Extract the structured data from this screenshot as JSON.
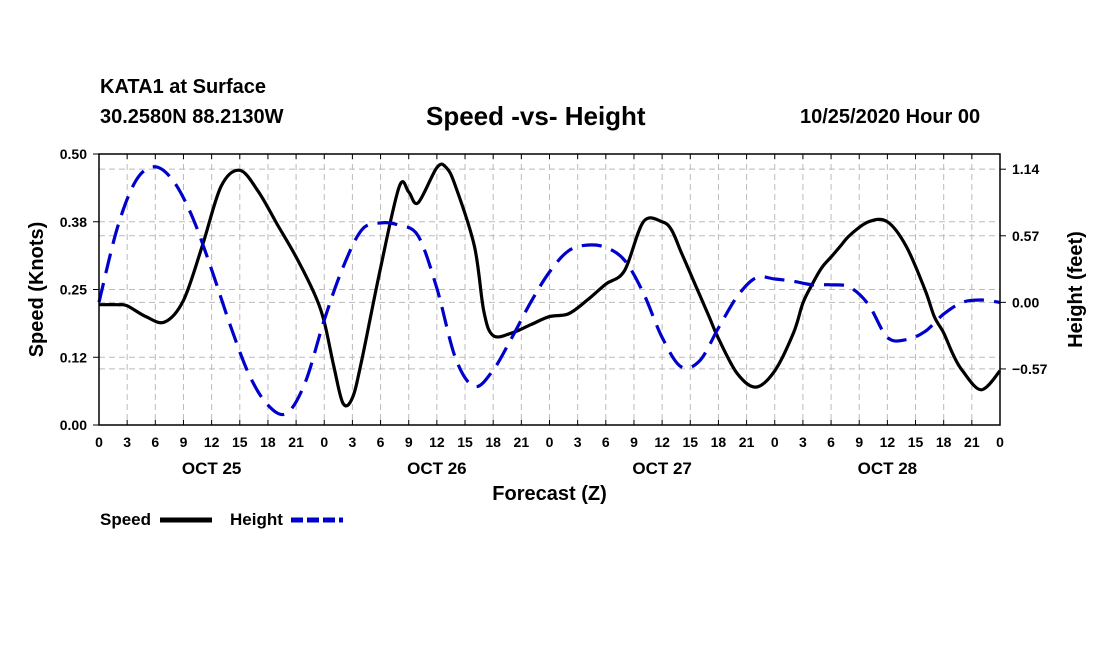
{
  "header": {
    "station": "KATA1 at Surface",
    "coords": "30.2580N 88.2130W",
    "title": "Speed -vs- Height",
    "datetime": "10/25/2020 Hour 00"
  },
  "legend": {
    "speed_label": "Speed",
    "height_label": "Height"
  },
  "colors": {
    "speed": "#000000",
    "height": "#0000cc",
    "grid": "#bbbbbb"
  },
  "chart_data": {
    "type": "line",
    "title": "Speed -vs- Height",
    "xlabel": "Forecast (Z)",
    "ylabel_left": "Speed (Knots)",
    "ylabel_right": "Height (feet)",
    "x_hours_range": [
      0,
      96
    ],
    "left_ylim": [
      0.0,
      0.5
    ],
    "right_ylim": [
      -1.05,
      1.27
    ],
    "left_ticks": [
      "0.00",
      "0.12",
      "0.25",
      "0.38",
      "0.50"
    ],
    "left_tick_values": [
      0.0,
      0.125,
      0.25,
      0.375,
      0.5
    ],
    "right_ticks": [
      "−0.57",
      "0.00",
      "0.57",
      "1.14"
    ],
    "right_tick_values": [
      -0.57,
      0.0,
      0.57,
      1.14
    ],
    "x_tick_labels": [
      "0",
      "3",
      "6",
      "9",
      "12",
      "15",
      "18",
      "21",
      "0",
      "3",
      "6",
      "9",
      "12",
      "15",
      "18",
      "21",
      "0",
      "3",
      "6",
      "9",
      "12",
      "15",
      "18",
      "21",
      "0",
      "3",
      "6",
      "9",
      "12",
      "15",
      "18",
      "21",
      "0"
    ],
    "day_labels": [
      {
        "label": "OCT 25",
        "hour": 12
      },
      {
        "label": "OCT 26",
        "hour": 36
      },
      {
        "label": "OCT 27",
        "hour": 60
      },
      {
        "label": "OCT 28",
        "hour": 84
      }
    ],
    "series": [
      {
        "name": "Speed",
        "axis": "left",
        "style": "solid",
        "x": [
          0,
          2,
          3,
          5,
          7,
          9,
          11,
          13,
          15,
          17,
          19,
          21,
          23,
          24,
          25,
          26,
          27,
          28,
          30,
          32,
          33,
          34,
          36,
          37,
          38,
          40,
          41,
          42,
          44,
          46,
          48,
          50,
          52,
          54,
          56,
          58,
          60,
          61,
          62,
          63,
          64,
          65,
          66,
          68,
          70,
          72,
          74,
          75,
          76,
          77,
          78,
          79,
          80,
          82,
          84,
          86,
          88,
          89,
          90,
          91,
          92,
          94,
          96
        ],
        "values": [
          0.222,
          0.222,
          0.22,
          0.2,
          0.19,
          0.23,
          0.33,
          0.44,
          0.47,
          0.43,
          0.37,
          0.31,
          0.24,
          0.19,
          0.11,
          0.04,
          0.05,
          0.12,
          0.29,
          0.44,
          0.43,
          0.41,
          0.475,
          0.475,
          0.44,
          0.33,
          0.21,
          0.165,
          0.17,
          0.185,
          0.2,
          0.205,
          0.23,
          0.26,
          0.285,
          0.375,
          0.375,
          0.36,
          0.32,
          0.28,
          0.24,
          0.2,
          0.16,
          0.095,
          0.07,
          0.1,
          0.17,
          0.225,
          0.26,
          0.29,
          0.31,
          0.33,
          0.35,
          0.375,
          0.375,
          0.33,
          0.25,
          0.2,
          0.17,
          0.13,
          0.1,
          0.065,
          0.1
        ]
      },
      {
        "name": "Height",
        "axis": "right",
        "style": "dashed",
        "x": [
          0,
          2,
          4,
          6,
          8,
          10,
          12,
          14,
          16,
          18,
          20,
          22,
          24,
          26,
          28,
          30,
          32,
          34,
          36,
          38,
          40,
          42,
          44,
          46,
          48,
          50,
          52,
          54,
          56,
          58,
          60,
          62,
          64,
          66,
          68,
          70,
          72,
          74,
          76,
          78,
          80,
          82,
          84,
          86,
          88,
          90,
          92,
          94,
          96
        ],
        "values": [
          0.0,
          0.65,
          1.05,
          1.16,
          1.03,
          0.72,
          0.28,
          -0.2,
          -0.62,
          -0.88,
          -0.95,
          -0.68,
          -0.15,
          0.3,
          0.62,
          0.68,
          0.66,
          0.57,
          0.12,
          -0.48,
          -0.72,
          -0.58,
          -0.3,
          0.0,
          0.26,
          0.44,
          0.49,
          0.47,
          0.36,
          0.08,
          -0.3,
          -0.55,
          -0.5,
          -0.22,
          0.05,
          0.21,
          0.2,
          0.18,
          0.15,
          0.15,
          0.13,
          -0.02,
          -0.3,
          -0.32,
          -0.25,
          -0.1,
          0.0,
          0.02,
          0.0
        ]
      }
    ]
  }
}
